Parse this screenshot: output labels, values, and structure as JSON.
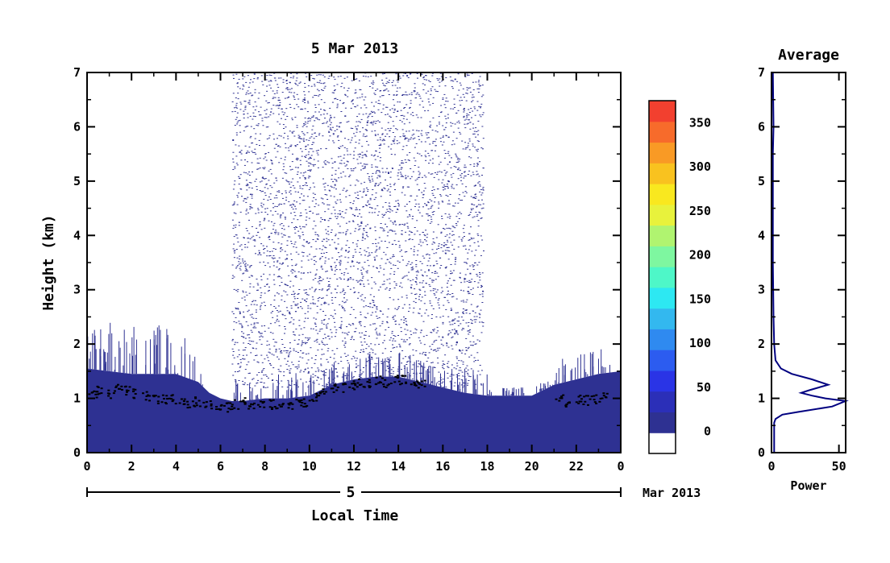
{
  "chart_data": [
    {
      "type": "heatmap",
      "title": "5 Mar 2013",
      "xlabel": "Local Time",
      "ylabel": "Height (km)",
      "xlim": [
        0,
        24
      ],
      "ylim": [
        0,
        7
      ],
      "x_ticks": [
        "0",
        "2",
        "4",
        "6",
        "8",
        "10",
        "12",
        "14",
        "16",
        "18",
        "20",
        "22",
        "0"
      ],
      "y_ticks": [
        "0",
        "1",
        "2",
        "3",
        "4",
        "5",
        "6",
        "7"
      ],
      "date_axis": {
        "day_label": "5",
        "month_label": "Mar 2013"
      },
      "colorbar": {
        "ticks": [
          "0",
          "50",
          "100",
          "150",
          "200",
          "250",
          "300",
          "350"
        ],
        "range": [
          -25,
          375
        ],
        "colors": [
          "#ffffff",
          "#2e3192",
          "#2b2fb8",
          "#2a34e6",
          "#2c5cf0",
          "#2f8af0",
          "#33b8ef",
          "#2de8f2",
          "#4ef7c8",
          "#7ef7a0",
          "#b0f470",
          "#e8f23c",
          "#f9e81f",
          "#f9c21f",
          "#f99a25",
          "#f76b2b",
          "#f2402f"
        ]
      },
      "boundary_layer_top": {
        "x": [
          0,
          1,
          2,
          3,
          4,
          5,
          5.5,
          6,
          6.5,
          7,
          8,
          9,
          10,
          10.5,
          11,
          12,
          13,
          14,
          15,
          16,
          17,
          18,
          19,
          20,
          21,
          22,
          23,
          24
        ],
        "y": [
          1.55,
          1.5,
          1.45,
          1.45,
          1.45,
          1.3,
          1.1,
          1.0,
          0.95,
          0.95,
          1.0,
          1.0,
          1.05,
          1.15,
          1.25,
          1.35,
          1.4,
          1.4,
          1.3,
          1.2,
          1.1,
          1.05,
          1.05,
          1.05,
          1.25,
          1.35,
          1.45,
          1.5
        ]
      },
      "black_dots": {
        "x": [
          0.2,
          0.6,
          1.0,
          1.4,
          1.8,
          2.2,
          2.6,
          3.0,
          3.4,
          3.8,
          4.2,
          4.6,
          5.0,
          5.4,
          5.8,
          6.2,
          6.6,
          7.0,
          7.4,
          7.8,
          8.2,
          8.6,
          9.0,
          9.4,
          9.8,
          10.2,
          10.6,
          11.0,
          11.4,
          11.8,
          12.2,
          12.6,
          13.0,
          13.4,
          13.8,
          14.2,
          14.6,
          15.0,
          21.2,
          21.6,
          22.0,
          22.4,
          22.8,
          23.2
        ],
        "y": [
          1.1,
          1.15,
          1.1,
          1.2,
          1.15,
          1.1,
          1.05,
          1.0,
          1.0,
          1.0,
          0.95,
          0.9,
          0.95,
          0.9,
          0.85,
          0.85,
          0.9,
          0.95,
          0.9,
          0.88,
          0.9,
          0.85,
          0.88,
          0.92,
          0.95,
          1.05,
          1.1,
          1.2,
          1.2,
          1.25,
          1.3,
          1.3,
          1.35,
          1.3,
          1.35,
          1.35,
          1.3,
          1.3,
          1.0,
          0.95,
          1.0,
          0.98,
          1.0,
          1.05
        ]
      }
    },
    {
      "type": "line",
      "title": "Average",
      "xlabel": "Power",
      "ylabel": "",
      "xlim": [
        0,
        55
      ],
      "ylim": [
        0,
        7
      ],
      "x_ticks": [
        "0",
        "50"
      ],
      "y_ticks": [
        "0",
        "1",
        "2",
        "3",
        "4",
        "5",
        "6",
        "7"
      ],
      "x": [
        2,
        2,
        2,
        3,
        8,
        20,
        45,
        55,
        40,
        30,
        22,
        28,
        42,
        30,
        15,
        7,
        3,
        2,
        1.5,
        1,
        1,
        1,
        1.5,
        1
      ],
      "y": [
        0,
        0.3,
        0.55,
        0.62,
        0.7,
        0.75,
        0.85,
        0.95,
        1.0,
        1.05,
        1.1,
        1.15,
        1.25,
        1.35,
        1.45,
        1.55,
        1.7,
        2.0,
        2.5,
        3.5,
        4.5,
        5.5,
        6.0,
        7.0
      ]
    }
  ]
}
